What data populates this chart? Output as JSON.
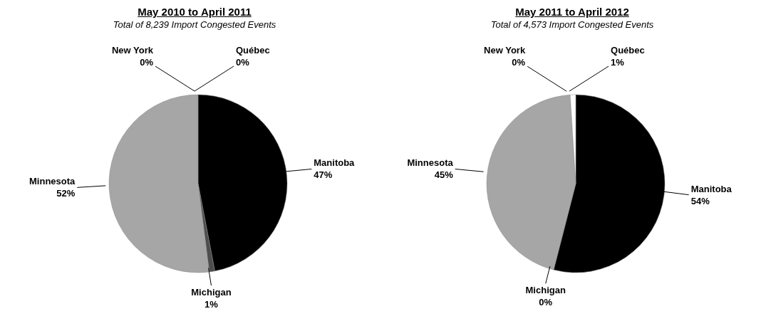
{
  "chart_data": [
    {
      "type": "pie",
      "title": "May 2010 to April 2011",
      "subtitle": "Total of 8,239 Import Congested Events",
      "categories": [
        "Manitoba",
        "Michigan",
        "Minnesota",
        "New York",
        "Québec"
      ],
      "values": [
        47,
        1,
        52,
        0,
        0
      ],
      "value_labels": [
        "47%",
        "1%",
        "52%",
        "0%",
        "0%"
      ],
      "colors": [
        "#000000",
        "#4d4d4d",
        "#a6a6a6",
        "#d0d0d0",
        "#ffffff"
      ]
    },
    {
      "type": "pie",
      "title": "May 2011 to April 2012",
      "subtitle": "Total of 4,573 Import Congested Events",
      "categories": [
        "Manitoba",
        "Michigan",
        "Minnesota",
        "New York",
        "Québec"
      ],
      "values": [
        54,
        0,
        45,
        0,
        1
      ],
      "value_labels": [
        "54%",
        "0%",
        "45%",
        "0%",
        "1%"
      ],
      "colors": [
        "#000000",
        "#4d4d4d",
        "#a6a6a6",
        "#d0d0d0",
        "#ffffff"
      ]
    }
  ]
}
